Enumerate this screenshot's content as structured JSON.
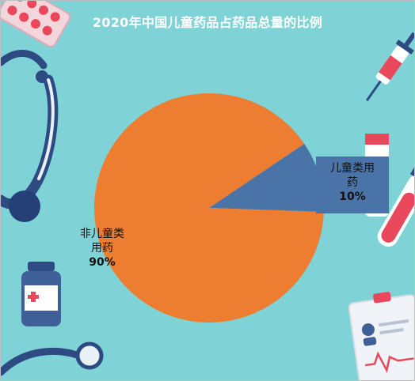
{
  "chart_data": {
    "type": "pie",
    "title": "2020年中国儿童药品占药品总量的比例",
    "slices": [
      {
        "label": "儿童类用药",
        "label_lines": [
          "儿童类用",
          "药"
        ],
        "value": 10,
        "value_label": "10%",
        "color": "#4a74a8"
      },
      {
        "label": "非儿童类用药",
        "label_lines": [
          "非儿童类",
          "用药"
        ],
        "value": 90,
        "value_label": "90%",
        "color": "#ed7d31"
      }
    ]
  },
  "icons": [
    "pill-blister-icon",
    "stethoscope-icon",
    "syringe-icon",
    "test-tube-icon",
    "medicine-bottle-icon",
    "medical-report-icon"
  ]
}
